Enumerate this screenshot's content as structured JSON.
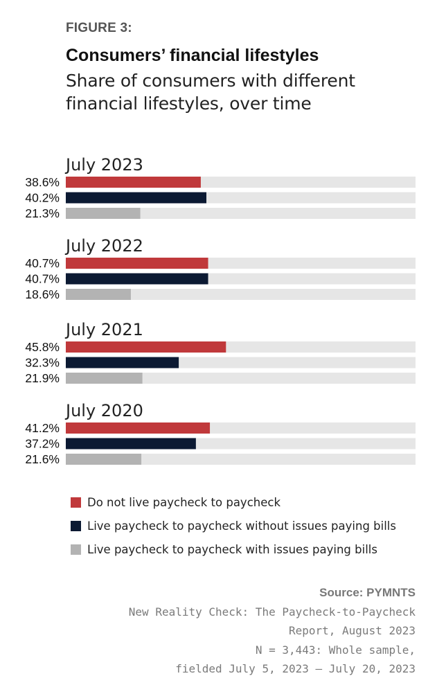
{
  "figure_label": "FIGURE 3:",
  "colors": {
    "track": "#e6e6e6",
    "text": "#222222"
  },
  "chart_data": {
    "type": "bar",
    "title": "Consumers’ financial lifestyles",
    "subtitle": "Share of consumers with different financial lifestyles, over time",
    "xlim": [
      0,
      100
    ],
    "value_suffix": "%",
    "series": [
      {
        "name": "Do not live paycheck to paycheck",
        "color": "#c0393b"
      },
      {
        "name": "Live paycheck to paycheck without issues paying bills",
        "color": "#0c1a33"
      },
      {
        "name": "Live paycheck to paycheck with issues paying bills",
        "color": "#b3b3b3"
      }
    ],
    "groups": [
      {
        "label": "July 2023",
        "values": [
          38.6,
          40.2,
          21.3
        ]
      },
      {
        "label": "July 2022",
        "values": [
          40.7,
          40.7,
          18.6
        ]
      },
      {
        "label": "July 2021",
        "values": [
          45.8,
          32.3,
          21.9
        ]
      },
      {
        "label": "July 2020",
        "values": [
          41.2,
          37.2,
          21.6
        ]
      }
    ]
  },
  "source": {
    "heading": "Source: PYMNTS",
    "lines": [
      "New Reality Check: The Paycheck-to-Paycheck",
      "Report, August 2023",
      "N = 3,443: Whole sample,",
      "fielded July 5, 2023 – July 20, 2023"
    ]
  }
}
